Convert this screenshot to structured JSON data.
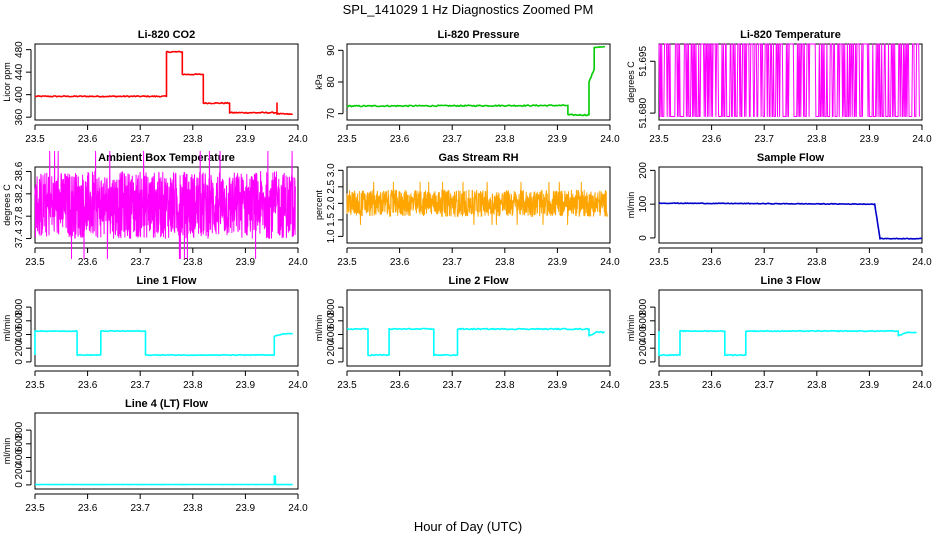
{
  "page": {
    "title": "SPL_141029  1 Hz Diagnostics Zoomed PM",
    "xlabel": "Hour of Day (UTC)"
  },
  "chart_data": [
    {
      "id": "co2",
      "type": "line",
      "title": "Li-820 CO2",
      "ylabel": "Licor ppm",
      "color": "#ff0000",
      "xlim": [
        23.5,
        24.0
      ],
      "ylim": [
        355,
        490
      ],
      "xticks": [
        23.5,
        23.6,
        23.7,
        23.8,
        23.9,
        24.0
      ],
      "xtick_labels": [
        "23.5",
        "23.6",
        "23.7",
        "23.8",
        "23.9",
        "24.0"
      ],
      "yticks": [
        360,
        400,
        440,
        480
      ],
      "ytick_labels": [
        "360",
        "400",
        "440",
        "480"
      ],
      "noise": 1,
      "series": [
        {
          "name": "CO2",
          "x": [
            23.5,
            23.75,
            23.75,
            23.78,
            23.78,
            23.82,
            23.82,
            23.87,
            23.87,
            23.96,
            23.96,
            23.96,
            23.96,
            23.99
          ],
          "y": [
            397,
            397,
            476,
            476,
            436,
            436,
            385,
            385,
            368,
            368,
            385,
            366,
            366,
            365
          ]
        }
      ]
    },
    {
      "id": "pressure",
      "type": "line",
      "title": "Li-820 Pressure",
      "ylabel": "kPa",
      "color": "#00cc00",
      "xlim": [
        23.5,
        24.0
      ],
      "ylim": [
        68,
        92
      ],
      "xticks": [
        23.5,
        23.6,
        23.7,
        23.8,
        23.9,
        24.0
      ],
      "xtick_labels": [
        "23.5",
        "23.6",
        "23.7",
        "23.8",
        "23.9",
        "24.0"
      ],
      "yticks": [
        70,
        80,
        90
      ],
      "ytick_labels": [
        "70",
        "80",
        "90"
      ],
      "noise": 0.2,
      "series": [
        {
          "name": "Pressure",
          "x": [
            23.5,
            23.92,
            23.92,
            23.96,
            23.96,
            23.97,
            23.97,
            23.99
          ],
          "y": [
            72.4,
            72.6,
            69.6,
            69.6,
            80,
            84,
            91,
            91
          ]
        }
      ]
    },
    {
      "id": "li820temp",
      "type": "line",
      "title": "Li-820 Temperature",
      "ylabel": "degrees C",
      "color": "#ff00ff",
      "xlim": [
        23.5,
        24.0
      ],
      "ylim": [
        51.678,
        51.7
      ],
      "xticks": [
        23.5,
        23.6,
        23.7,
        23.8,
        23.9,
        24.0
      ],
      "xtick_labels": [
        "23.5",
        "23.6",
        "23.7",
        "23.8",
        "23.9",
        "24.0"
      ],
      "yticks": [
        51.68,
        51.695
      ],
      "ytick_labels": [
        "51.680",
        "51.695"
      ],
      "pattern": "binary",
      "low": 51.679,
      "high": 51.7,
      "series": [
        {
          "name": "Li-820 Temperature",
          "x": [
            23.5,
            23.995
          ],
          "y": [
            51.679,
            51.7
          ]
        }
      ]
    },
    {
      "id": "ambient",
      "type": "line",
      "title": "Ambient Box Temperature",
      "ylabel": "degrees C",
      "color": "#ff00ff",
      "xlim": [
        23.5,
        24.0
      ],
      "ylim": [
        37.32,
        38.68
      ],
      "xticks": [
        23.5,
        23.6,
        23.7,
        23.8,
        23.9,
        24.0
      ],
      "xtick_labels": [
        "23.5",
        "23.6",
        "23.7",
        "23.8",
        "23.9",
        "24.0"
      ],
      "yticks": [
        37.4,
        37.8,
        38.2,
        38.6
      ],
      "ytick_labels": [
        "37.4",
        "37.8",
        "38.2",
        "38.6"
      ],
      "pattern": "band",
      "low": 37.4,
      "high": 38.6,
      "series": [
        {
          "name": "Ambient Box Temperature",
          "x": [
            23.5,
            23.995
          ],
          "y": [
            37.4,
            38.6
          ]
        }
      ]
    },
    {
      "id": "rh",
      "type": "line",
      "title": "Gas Stream RH",
      "ylabel": "percent",
      "color": "#ffa500",
      "xlim": [
        23.5,
        24.0
      ],
      "ylim": [
        0.8,
        3.1
      ],
      "xticks": [
        23.5,
        23.6,
        23.7,
        23.8,
        23.9,
        24.0
      ],
      "xtick_labels": [
        "23.5",
        "23.6",
        "23.7",
        "23.8",
        "23.9",
        "24.0"
      ],
      "yticks": [
        1.0,
        1.5,
        2.0,
        2.5,
        3.0
      ],
      "ytick_labels": [
        "1.0",
        "1.5",
        "2.0",
        "2.5",
        "3.0"
      ],
      "pattern": "band",
      "low": 1.6,
      "high": 2.4,
      "series": [
        {
          "name": "Gas Stream RH",
          "x": [
            23.5,
            23.995
          ],
          "y": [
            1.6,
            2.4
          ]
        }
      ]
    },
    {
      "id": "sampleflow",
      "type": "line",
      "title": "Sample Flow",
      "ylabel": "ml/min",
      "color": "#0000cc",
      "xlim": [
        23.5,
        24.0
      ],
      "ylim": [
        -15,
        210
      ],
      "xticks": [
        23.5,
        23.6,
        23.7,
        23.8,
        23.9,
        24.0
      ],
      "xtick_labels": [
        "23.5",
        "23.6",
        "23.7",
        "23.8",
        "23.9",
        "24.0"
      ],
      "yticks": [
        0,
        100,
        200
      ],
      "ytick_labels": [
        "0",
        "100",
        "200"
      ],
      "noise": 1,
      "series": [
        {
          "name": "Sample Flow",
          "x": [
            23.5,
            23.91,
            23.91,
            23.92,
            23.92,
            24.0
          ],
          "y": [
            103,
            100,
            100,
            0,
            -2,
            -2
          ]
        }
      ]
    },
    {
      "id": "line1",
      "type": "line",
      "title": "Line 1 Flow",
      "ylabel": "ml/min",
      "color": "#00ffff",
      "xlim": [
        23.5,
        24.0
      ],
      "ylim": [
        -60,
        1050
      ],
      "xticks": [
        23.5,
        23.6,
        23.7,
        23.8,
        23.9,
        24.0
      ],
      "xtick_labels": [
        "23.5",
        "23.6",
        "23.7",
        "23.8",
        "23.9",
        "24.0"
      ],
      "yticks": [
        0,
        200,
        400,
        600,
        800
      ],
      "ytick_labels": [
        "0",
        "200",
        "400",
        "600",
        "800"
      ],
      "noise": 5,
      "series": [
        {
          "name": "Line 1 Flow",
          "x": [
            23.5,
            23.5,
            23.58,
            23.58,
            23.625,
            23.625,
            23.71,
            23.71,
            23.955,
            23.955,
            23.97,
            23.99
          ],
          "y": [
            100,
            450,
            450,
            100,
            100,
            450,
            450,
            100,
            100,
            370,
            410,
            410
          ]
        }
      ]
    },
    {
      "id": "line2",
      "type": "line",
      "title": "Line 2 Flow",
      "ylabel": "ml/min",
      "color": "#00ffff",
      "xlim": [
        23.5,
        24.0
      ],
      "ylim": [
        -60,
        1050
      ],
      "xticks": [
        23.5,
        23.6,
        23.7,
        23.8,
        23.9,
        24.0
      ],
      "xtick_labels": [
        "23.5",
        "23.6",
        "23.7",
        "23.8",
        "23.9",
        "24.0"
      ],
      "yticks": [
        0,
        200,
        400,
        600,
        800
      ],
      "ytick_labels": [
        "0",
        "200",
        "400",
        "600",
        "800"
      ],
      "noise": 8,
      "series": [
        {
          "name": "Line 2 Flow",
          "x": [
            23.5,
            23.54,
            23.54,
            23.58,
            23.58,
            23.665,
            23.665,
            23.71,
            23.71,
            23.96,
            23.96,
            23.975,
            23.99
          ],
          "y": [
            480,
            480,
            100,
            100,
            480,
            480,
            100,
            100,
            480,
            480,
            380,
            440,
            430
          ]
        }
      ]
    },
    {
      "id": "line3",
      "type": "line",
      "title": "Line 3 Flow",
      "ylabel": "ml/min",
      "color": "#00ffff",
      "xlim": [
        23.5,
        24.0
      ],
      "ylim": [
        -60,
        1050
      ],
      "xticks": [
        23.5,
        23.6,
        23.7,
        23.8,
        23.9,
        24.0
      ],
      "xtick_labels": [
        "23.5",
        "23.6",
        "23.7",
        "23.8",
        "23.9",
        "24.0"
      ],
      "yticks": [
        0,
        200,
        400,
        600,
        800
      ],
      "ytick_labels": [
        "0",
        "200",
        "400",
        "600",
        "800"
      ],
      "noise": 6,
      "series": [
        {
          "name": "Line 3 Flow",
          "x": [
            23.5,
            23.5,
            23.54,
            23.54,
            23.625,
            23.625,
            23.665,
            23.665,
            23.955,
            23.955,
            23.97,
            23.99
          ],
          "y": [
            450,
            100,
            100,
            450,
            450,
            100,
            100,
            450,
            450,
            380,
            430,
            430
          ]
        }
      ]
    },
    {
      "id": "line4",
      "type": "line",
      "title": "Line 4 (LT) Flow",
      "ylabel": "ml/min",
      "color": "#00ffff",
      "xlim": [
        23.5,
        24.0
      ],
      "ylim": [
        -60,
        1050
      ],
      "xticks": [
        23.5,
        23.6,
        23.7,
        23.8,
        23.9,
        24.0
      ],
      "xtick_labels": [
        "23.5",
        "23.6",
        "23.7",
        "23.8",
        "23.9",
        "24.0"
      ],
      "yticks": [
        0,
        200,
        400,
        600,
        800
      ],
      "ytick_labels": [
        "0",
        "200",
        "400",
        "600",
        "800"
      ],
      "noise": 1,
      "series": [
        {
          "name": "Line 4 (LT) Flow",
          "x": [
            23.5,
            23.955,
            23.955,
            23.957,
            23.957,
            23.99
          ],
          "y": [
            5,
            5,
            130,
            130,
            5,
            5
          ]
        }
      ]
    }
  ]
}
